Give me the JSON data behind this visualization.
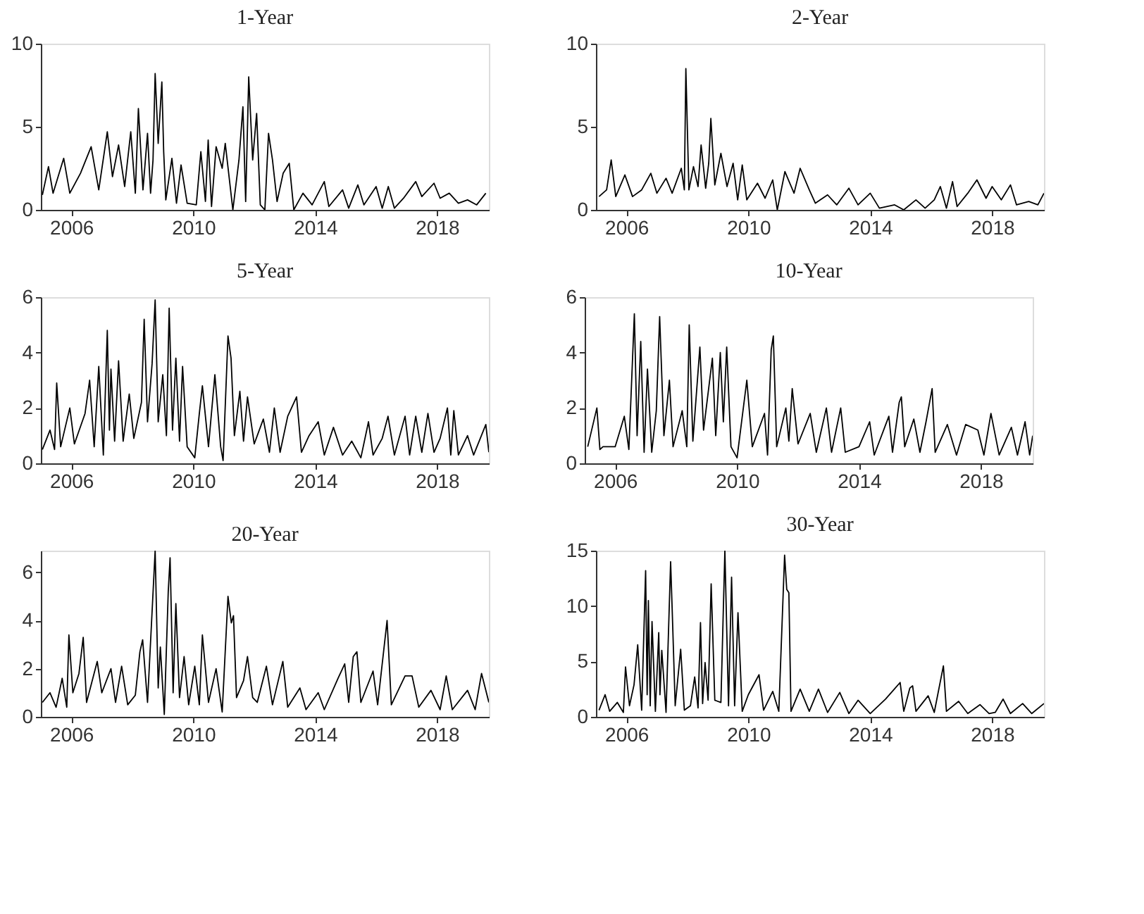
{
  "chart_data": [
    {
      "type": "line",
      "title": "1-Year",
      "xlim": [
        2005,
        2019.7
      ],
      "xticks": [
        2006,
        2010,
        2014,
        2018
      ],
      "ylim": [
        0,
        10
      ],
      "yticks": [
        0,
        5,
        10
      ],
      "grid": false,
      "series": [
        {
          "color": "#000000",
          "x": [
            2005.05,
            2005.25,
            2005.4,
            2005.75,
            2005.95,
            2006.3,
            2006.65,
            2006.9,
            2007.18,
            2007.35,
            2007.55,
            2007.75,
            2007.95,
            2008.1,
            2008.2,
            2008.35,
            2008.5,
            2008.6,
            2008.68,
            2008.75,
            2008.85,
            2008.97,
            2009.03,
            2009.1,
            2009.3,
            2009.45,
            2009.6,
            2009.8,
            2010.1,
            2010.25,
            2010.4,
            2010.49,
            2010.6,
            2010.75,
            2010.95,
            2011.05,
            2011.3,
            2011.5,
            2011.63,
            2011.72,
            2011.82,
            2011.95,
            2012.08,
            2012.2,
            2012.35,
            2012.47,
            2012.6,
            2012.75,
            2012.95,
            2013.15,
            2013.3,
            2013.6,
            2013.9,
            2014.3,
            2014.45,
            2014.9,
            2015.1,
            2015.4,
            2015.6,
            2016.0,
            2016.2,
            2016.4,
            2016.6,
            2016.9,
            2017.3,
            2017.5,
            2017.9,
            2018.1,
            2018.4,
            2018.7,
            2019.0,
            2019.3,
            2019.6
          ],
          "values": [
            0.9,
            2.6,
            1.0,
            3.1,
            1.0,
            2.2,
            3.8,
            1.2,
            4.7,
            2.0,
            3.9,
            1.4,
            4.7,
            1.0,
            6.1,
            1.2,
            4.6,
            1.0,
            3.0,
            8.2,
            4.0,
            7.7,
            3.5,
            0.6,
            3.1,
            0.4,
            2.7,
            0.4,
            0.3,
            3.5,
            0.5,
            4.2,
            0.2,
            3.8,
            2.5,
            4.0,
            0.0,
            3.0,
            6.2,
            0.5,
            8.0,
            3.0,
            5.8,
            0.3,
            0.0,
            4.6,
            3.0,
            0.5,
            2.2,
            2.8,
            0.0,
            1.0,
            0.3,
            1.7,
            0.2,
            1.2,
            0.1,
            1.5,
            0.3,
            1.4,
            0.1,
            1.4,
            0.1,
            0.7,
            1.7,
            0.8,
            1.6,
            0.7,
            1.0,
            0.4,
            0.6,
            0.3,
            1.0
          ]
        }
      ]
    },
    {
      "type": "line",
      "title": "2-Year",
      "xlim": [
        2005,
        2019.7
      ],
      "xticks": [
        2006,
        2010,
        2014,
        2018
      ],
      "ylim": [
        0,
        10
      ],
      "yticks": [
        0,
        5,
        10
      ],
      "grid": false,
      "series": [
        {
          "color": "#000000",
          "x": [
            2005.1,
            2005.35,
            2005.5,
            2005.65,
            2005.95,
            2006.2,
            2006.5,
            2006.8,
            2007.0,
            2007.3,
            2007.5,
            2007.8,
            2007.9,
            2007.95,
            2008.05,
            2008.2,
            2008.35,
            2008.45,
            2008.6,
            2008.7,
            2008.77,
            2008.9,
            2009.1,
            2009.3,
            2009.5,
            2009.65,
            2009.8,
            2009.95,
            2010.3,
            2010.55,
            2010.8,
            2010.95,
            2011.2,
            2011.5,
            2011.7,
            2012.0,
            2012.2,
            2012.6,
            2012.9,
            2013.3,
            2013.6,
            2014.0,
            2014.3,
            2014.8,
            2015.1,
            2015.5,
            2015.8,
            2016.1,
            2016.3,
            2016.5,
            2016.7,
            2016.85,
            2017.2,
            2017.5,
            2017.8,
            2018.0,
            2018.3,
            2018.6,
            2018.8,
            2019.2,
            2019.5,
            2019.7
          ],
          "values": [
            0.8,
            1.2,
            3.0,
            0.8,
            2.1,
            0.8,
            1.2,
            2.2,
            1.0,
            1.9,
            1.0,
            2.5,
            1.2,
            8.5,
            1.2,
            2.6,
            1.4,
            3.9,
            1.3,
            2.8,
            5.5,
            1.5,
            3.4,
            1.4,
            2.8,
            0.6,
            2.7,
            0.6,
            1.6,
            0.7,
            1.8,
            0.0,
            2.3,
            1.0,
            2.5,
            1.2,
            0.4,
            0.9,
            0.3,
            1.3,
            0.3,
            1.0,
            0.1,
            0.3,
            0.0,
            0.6,
            0.1,
            0.6,
            1.4,
            0.1,
            1.7,
            0.2,
            1.0,
            1.8,
            0.7,
            1.4,
            0.6,
            1.5,
            0.3,
            0.5,
            0.3,
            1.0
          ]
        }
      ]
    },
    {
      "type": "line",
      "title": "5-Year",
      "xlim": [
        2005,
        2019.7
      ],
      "xticks": [
        2006,
        2010,
        2014,
        2018
      ],
      "ylim": [
        0,
        6
      ],
      "yticks": [
        0,
        2,
        4,
        6
      ],
      "grid": false,
      "series": [
        {
          "color": "#000000",
          "x": [
            2005.05,
            2005.3,
            2005.45,
            2005.52,
            2005.65,
            2005.95,
            2006.1,
            2006.45,
            2006.6,
            2006.75,
            2006.9,
            2007.05,
            2007.18,
            2007.25,
            2007.3,
            2007.42,
            2007.55,
            2007.7,
            2007.9,
            2008.05,
            2008.3,
            2008.39,
            2008.5,
            2008.65,
            2008.75,
            2008.85,
            2009.0,
            2009.12,
            2009.21,
            2009.32,
            2009.43,
            2009.55,
            2009.65,
            2009.8,
            2010.05,
            2010.2,
            2010.3,
            2010.5,
            2010.71,
            2010.9,
            2010.98,
            2011.14,
            2011.24,
            2011.35,
            2011.53,
            2011.65,
            2011.78,
            2012.0,
            2012.3,
            2012.5,
            2012.66,
            2012.85,
            2013.1,
            2013.39,
            2013.55,
            2013.8,
            2014.1,
            2014.3,
            2014.6,
            2014.9,
            2015.2,
            2015.5,
            2015.75,
            2015.9,
            2016.2,
            2016.39,
            2016.6,
            2016.95,
            2017.1,
            2017.3,
            2017.5,
            2017.7,
            2017.9,
            2018.1,
            2018.34,
            2018.45,
            2018.55,
            2018.7,
            2019.0,
            2019.2,
            2019.6,
            2019.7
          ],
          "values": [
            0.5,
            1.2,
            0.5,
            2.9,
            0.6,
            2.0,
            0.7,
            1.8,
            3.0,
            0.6,
            3.5,
            0.3,
            4.8,
            1.2,
            3.4,
            0.8,
            3.7,
            0.8,
            2.5,
            0.9,
            2.2,
            5.2,
            1.5,
            3.6,
            5.9,
            1.5,
            3.2,
            1.0,
            5.6,
            1.2,
            3.8,
            0.8,
            3.5,
            0.6,
            0.2,
            1.8,
            2.8,
            0.6,
            3.2,
            0.6,
            0.1,
            4.6,
            3.8,
            1.0,
            2.6,
            0.8,
            2.4,
            0.7,
            1.6,
            0.4,
            2.0,
            0.4,
            1.7,
            2.4,
            0.4,
            1.0,
            1.5,
            0.3,
            1.3,
            0.3,
            0.8,
            0.2,
            1.5,
            0.3,
            0.9,
            1.7,
            0.3,
            1.7,
            0.3,
            1.7,
            0.4,
            1.8,
            0.4,
            0.9,
            2.0,
            0.3,
            1.9,
            0.3,
            1.0,
            0.3,
            1.4,
            0.4
          ]
        }
      ]
    },
    {
      "type": "line",
      "title": "10-Year",
      "xlim": [
        2005,
        2019.7
      ],
      "xticks": [
        2006,
        2010,
        2014,
        2018
      ],
      "ylim": [
        0,
        6
      ],
      "yticks": [
        0,
        2,
        4,
        6
      ],
      "grid": false,
      "series": [
        {
          "color": "#000000",
          "x": [
            2005.1,
            2005.4,
            2005.5,
            2005.6,
            2006.0,
            2006.3,
            2006.45,
            2006.63,
            2006.72,
            2006.84,
            2006.95,
            2007.06,
            2007.2,
            2007.35,
            2007.46,
            2007.6,
            2007.78,
            2007.9,
            2008.2,
            2008.35,
            2008.43,
            2008.55,
            2008.78,
            2008.9,
            2009.19,
            2009.3,
            2009.45,
            2009.55,
            2009.66,
            2009.8,
            2010.0,
            2010.32,
            2010.5,
            2010.9,
            2011.0,
            2011.12,
            2011.19,
            2011.3,
            2011.6,
            2011.7,
            2011.81,
            2012.0,
            2012.4,
            2012.6,
            2012.93,
            2013.1,
            2013.4,
            2013.55,
            2014.0,
            2014.35,
            2014.5,
            2014.98,
            2015.1,
            2015.32,
            2015.39,
            2015.5,
            2015.8,
            2016.0,
            2016.2,
            2016.4,
            2016.5,
            2016.9,
            2017.2,
            2017.5,
            2017.9,
            2018.1,
            2018.33,
            2018.6,
            2019.0,
            2019.2,
            2019.45,
            2019.6,
            2019.7
          ],
          "values": [
            0.6,
            2.0,
            0.5,
            0.6,
            0.6,
            1.7,
            0.5,
            5.4,
            1.0,
            4.4,
            0.4,
            3.4,
            0.4,
            1.9,
            5.3,
            1.0,
            3.0,
            0.6,
            1.9,
            0.6,
            5.0,
            0.8,
            4.2,
            1.2,
            3.8,
            1.0,
            4.0,
            1.5,
            4.2,
            0.6,
            0.2,
            3.0,
            0.6,
            1.8,
            0.3,
            4.1,
            4.6,
            0.6,
            2.0,
            0.8,
            2.7,
            0.7,
            1.8,
            0.4,
            2.0,
            0.4,
            2.0,
            0.4,
            0.6,
            1.5,
            0.3,
            1.7,
            0.4,
            2.2,
            2.4,
            0.6,
            1.6,
            0.4,
            1.5,
            2.7,
            0.4,
            1.4,
            0.3,
            1.4,
            1.2,
            0.3,
            1.8,
            0.3,
            1.3,
            0.3,
            1.5,
            0.3,
            1.0
          ]
        }
      ]
    },
    {
      "type": "line",
      "title": "20-Year",
      "xlim": [
        2005,
        2019.7
      ],
      "xticks": [
        2006,
        2010,
        2014,
        2018
      ],
      "ylim": [
        0,
        6.9
      ],
      "yticks": [
        0,
        2,
        4,
        6
      ],
      "grid": false,
      "series": [
        {
          "color": "#000000",
          "x": [
            2005.05,
            2005.3,
            2005.5,
            2005.7,
            2005.85,
            2005.92,
            2006.05,
            2006.25,
            2006.39,
            2006.5,
            2006.85,
            2007.0,
            2007.3,
            2007.45,
            2007.65,
            2007.85,
            2008.1,
            2008.25,
            2008.34,
            2008.5,
            2008.75,
            2008.85,
            2008.92,
            2009.05,
            2009.18,
            2009.24,
            2009.34,
            2009.43,
            2009.55,
            2009.7,
            2009.85,
            2010.05,
            2010.2,
            2010.3,
            2010.5,
            2010.75,
            2010.95,
            2011.14,
            2011.25,
            2011.32,
            2011.42,
            2011.65,
            2011.78,
            2011.95,
            2012.1,
            2012.4,
            2012.6,
            2012.94,
            2013.1,
            2013.5,
            2013.7,
            2014.1,
            2014.3,
            2014.75,
            2014.97,
            2015.1,
            2015.25,
            2015.37,
            2015.5,
            2015.9,
            2016.05,
            2016.36,
            2016.5,
            2016.95,
            2017.18,
            2017.4,
            2017.8,
            2018.1,
            2018.3,
            2018.5,
            2019.0,
            2019.25,
            2019.46,
            2019.7
          ],
          "values": [
            0.6,
            1.0,
            0.4,
            1.6,
            0.4,
            3.4,
            1.0,
            1.8,
            3.3,
            0.6,
            2.3,
            1.0,
            2.0,
            0.6,
            2.1,
            0.5,
            0.9,
            2.7,
            3.2,
            0.6,
            6.9,
            1.2,
            2.9,
            0.1,
            5.2,
            6.6,
            1.0,
            4.7,
            0.8,
            2.5,
            0.5,
            2.1,
            0.5,
            3.4,
            0.6,
            2.0,
            0.2,
            5.0,
            3.9,
            4.2,
            0.8,
            1.5,
            2.5,
            0.8,
            0.6,
            2.1,
            0.5,
            2.3,
            0.4,
            1.2,
            0.3,
            1.0,
            0.3,
            1.6,
            2.2,
            0.6,
            2.5,
            2.7,
            0.6,
            1.9,
            0.5,
            4.0,
            0.5,
            1.7,
            1.7,
            0.4,
            1.1,
            0.3,
            1.7,
            0.3,
            1.1,
            0.3,
            1.8,
            0.6
          ]
        }
      ]
    },
    {
      "type": "line",
      "title": "30-Year",
      "xlim": [
        2005,
        2019.7
      ],
      "xticks": [
        2006,
        2010,
        2014,
        2018
      ],
      "ylim": [
        0,
        15
      ],
      "yticks": [
        0,
        5,
        10,
        15
      ],
      "grid": false,
      "series": [
        {
          "color": "#000000",
          "x": [
            2005.1,
            2005.3,
            2005.45,
            2005.7,
            2005.9,
            2005.97,
            2006.1,
            2006.25,
            2006.37,
            2006.5,
            2006.63,
            2006.68,
            2006.72,
            2006.78,
            2006.84,
            2006.95,
            2007.06,
            2007.1,
            2007.16,
            2007.3,
            2007.45,
            2007.5,
            2007.6,
            2007.78,
            2007.9,
            2008.1,
            2008.24,
            2008.35,
            2008.43,
            2008.5,
            2008.58,
            2008.68,
            2008.78,
            2008.9,
            2009.1,
            2009.23,
            2009.35,
            2009.45,
            2009.55,
            2009.66,
            2009.8,
            2010.0,
            2010.35,
            2010.5,
            2010.8,
            2011.0,
            2011.19,
            2011.26,
            2011.33,
            2011.4,
            2011.7,
            2012.0,
            2012.3,
            2012.6,
            2013.0,
            2013.3,
            2013.6,
            2014.0,
            2014.5,
            2014.98,
            2015.1,
            2015.3,
            2015.39,
            2015.5,
            2015.9,
            2016.1,
            2016.4,
            2016.5,
            2016.9,
            2017.2,
            2017.6,
            2017.9,
            2018.1,
            2018.36,
            2018.6,
            2019.0,
            2019.3,
            2019.7
          ],
          "values": [
            0.6,
            2.0,
            0.5,
            1.3,
            0.4,
            4.5,
            1.0,
            2.9,
            6.5,
            0.6,
            13.2,
            2.0,
            10.5,
            1.0,
            8.6,
            0.5,
            7.6,
            2.0,
            6.0,
            0.4,
            14.0,
            9.8,
            1.0,
            6.1,
            0.6,
            1.0,
            3.6,
            0.8,
            8.5,
            1.2,
            4.9,
            1.5,
            12.0,
            1.5,
            1.3,
            15.0,
            1.0,
            12.6,
            1.0,
            9.4,
            0.5,
            2.0,
            3.8,
            0.6,
            2.3,
            0.5,
            14.6,
            11.5,
            11.2,
            0.5,
            2.5,
            0.5,
            2.5,
            0.4,
            2.2,
            0.3,
            1.5,
            0.3,
            1.6,
            3.1,
            0.5,
            2.6,
            2.8,
            0.5,
            1.9,
            0.4,
            4.6,
            0.5,
            1.4,
            0.3,
            1.1,
            0.3,
            0.4,
            1.6,
            0.3,
            1.2,
            0.3,
            1.2
          ]
        }
      ]
    }
  ]
}
